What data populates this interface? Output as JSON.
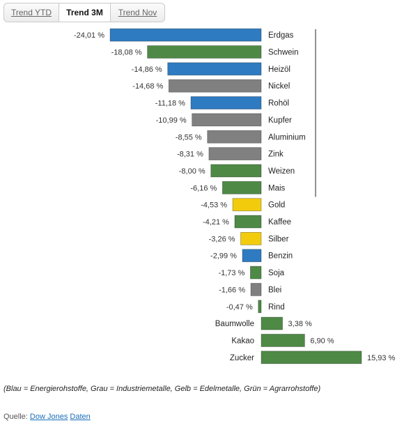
{
  "tabs": [
    {
      "label": "Trend YTD",
      "active": false
    },
    {
      "label": "Trend 3M",
      "active": true
    },
    {
      "label": "Trend Nov",
      "active": false
    }
  ],
  "chart_data": {
    "type": "bar",
    "orientation": "horizontal",
    "categories": [
      "Erdgas",
      "Schwein",
      "Heizöl",
      "Nickel",
      "Rohöl",
      "Kupfer",
      "Aluminium",
      "Zink",
      "Weizen",
      "Mais",
      "Gold",
      "Kaffee",
      "Silber",
      "Benzin",
      "Soja",
      "Blei",
      "Rind",
      "Baumwolle",
      "Kakao",
      "Zucker"
    ],
    "values": [
      -24.01,
      -18.08,
      -14.86,
      -14.68,
      -11.18,
      -10.99,
      -8.55,
      -8.31,
      -8.0,
      -6.16,
      -4.53,
      -4.21,
      -3.26,
      -2.99,
      -1.73,
      -1.66,
      -0.47,
      3.38,
      6.9,
      15.93
    ],
    "value_labels": [
      "-24,01 %",
      "-18,08 %",
      "-14,86 %",
      "-14,68 %",
      "-11,18 %",
      "-10,99 %",
      "-8,55 %",
      "-8,31 %",
      "-8,00 %",
      "-6,16 %",
      "-4,53 %",
      "-4,21 %",
      "-3,26 %",
      "-2,99 %",
      "-1,73 %",
      "-1,66 %",
      "-0,47 %",
      "3,38 %",
      "6,90 %",
      "15,93 %"
    ],
    "groups": [
      "energy",
      "agri",
      "energy",
      "industrial",
      "energy",
      "industrial",
      "industrial",
      "industrial",
      "agri",
      "agri",
      "precious",
      "agri",
      "precious",
      "energy",
      "agri",
      "industrial",
      "agri",
      "agri",
      "agri",
      "agri"
    ],
    "colors": {
      "energy": "#2e7bc1",
      "industrial": "#808080",
      "precious": "#f2cc0c",
      "agri": "#4e8a46"
    },
    "xlim": [
      -24.01,
      15.93
    ],
    "title": "",
    "xlabel": "",
    "ylabel": "",
    "grid": false
  },
  "note": "(Blau = Energierohstoffe, Grau = Industriemetalle, Gelb = Edelmetalle, Grün = Agrarrohstoffe)",
  "source": {
    "prefix": "Quelle:",
    "link1": "Dow Jones",
    "link2": "Daten"
  }
}
